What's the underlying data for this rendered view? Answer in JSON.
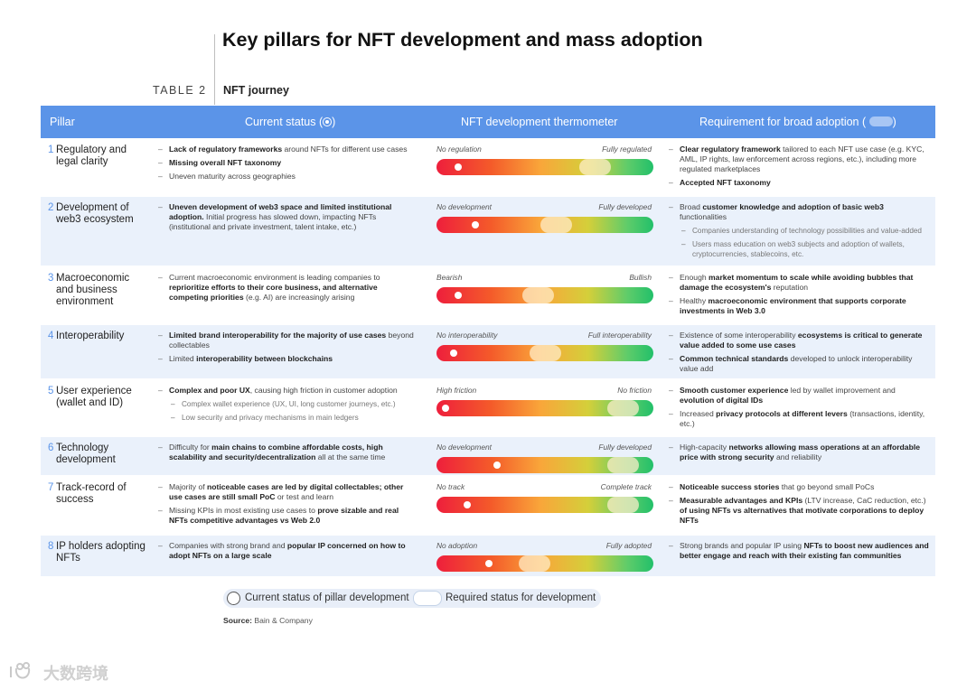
{
  "title": "Key pillars for NFT development and mass adoption",
  "table_tag": "TABLE 2",
  "table_name": "NFT journey",
  "header": {
    "pillar": "Pillar",
    "status": "Current status (",
    "status_close": ")",
    "thermometer": "NFT development thermometer",
    "requirement": "Requirement for broad adoption (",
    "requirement_close": ")"
  },
  "rows": [
    {
      "num": "1",
      "pillar": "Regulatory and legal clarity",
      "status": [
        {
          "b": "Lack of regulatory frameworks",
          "t": " around NFTs for different use cases"
        },
        {
          "b": "Missing overall NFT taxonomy",
          "t": ""
        },
        {
          "b": "",
          "t": "Uneven maturity across geographies"
        }
      ],
      "low": "No regulation",
      "high": "Fully regulated",
      "current": 0.1,
      "required": 0.73,
      "req": [
        {
          "b": "Clear regulatory framework",
          "t": " tailored to each NFT use case (e.g. KYC, AML, IP rights, law enforcement across regions, etc.), including more regulated marketplaces"
        },
        {
          "b": "Accepted NFT taxonomy",
          "t": ""
        }
      ]
    },
    {
      "num": "2",
      "pillar": "Development of web3 ecosystem",
      "status": [
        {
          "b": "Uneven development of web3 space and limited institutional adoption.",
          "t": " Initial progress has slowed down, impacting NFTs (institutional and private investment, talent intake, etc.)"
        }
      ],
      "low": "No development",
      "high": "Fully developed",
      "current": 0.18,
      "required": 0.55,
      "req": [
        {
          "t1": "Broad ",
          "b": "customer knowledge and adoption of basic web3",
          "t": " functionalities"
        },
        {
          "sub": true,
          "t": "Companies understanding of technology possibilities and value-added"
        },
        {
          "sub": true,
          "t": "Users mass education on web3 subjects and adoption of wallets, cryptocurrencies, stablecoins, etc."
        }
      ]
    },
    {
      "num": "3",
      "pillar": "Macroeconomic and business environment",
      "status": [
        {
          "t1": "Current macroeconomic environment is leading companies to ",
          "b": "reprioritize efforts to their core business, and alternative competing priorities",
          "t": " (e.g. AI) are increasingly arising"
        }
      ],
      "low": "Bearish",
      "high": "Bullish",
      "current": 0.1,
      "required": 0.47,
      "req": [
        {
          "t1": "Enough ",
          "b": "market momentum to scale while avoiding bubbles that damage the ecosystem's",
          "t": " reputation"
        },
        {
          "t1": "Healthy ",
          "b": "macroeconomic environment that supports corporate investments in Web 3.0",
          "t": ""
        }
      ]
    },
    {
      "num": "4",
      "pillar": "Interoperability",
      "status": [
        {
          "b": "Limited brand interoperability for the majority of use cases",
          "t": " beyond collectables"
        },
        {
          "t1": "Limited ",
          "b": "interoperability between blockchains",
          "t": ""
        }
      ],
      "low": "No interoperability",
      "high": "Full interoperability",
      "current": 0.08,
      "required": 0.5,
      "req": [
        {
          "t1": "Existence of some interoperability ",
          "b": "ecosystems is critical to generate value added to some use cases",
          "t": ""
        },
        {
          "b": "Common technical standards",
          "t": " developed to unlock interoperability value add"
        }
      ]
    },
    {
      "num": "5",
      "pillar": "User experience (wallet and ID)",
      "status": [
        {
          "b": "Complex and poor UX",
          "t": ", causing high friction in customer adoption"
        },
        {
          "sub": true,
          "t": "Complex wallet experience (UX, UI, long customer journeys, etc.)"
        },
        {
          "sub": true,
          "t": "Low security and privacy mechanisms in main ledgers"
        }
      ],
      "low": "High friction",
      "high": "No friction",
      "current": 0.04,
      "required": 0.86,
      "req": [
        {
          "b": "Smooth customer experience",
          "t": " led by wallet improvement and ",
          "b2": "evolution of digital IDs"
        },
        {
          "t1": "Increased ",
          "b": "privacy protocols at different levers",
          "t": " (transactions, identity, etc.)"
        }
      ]
    },
    {
      "num": "6",
      "pillar": "Technology development",
      "status": [
        {
          "t1": "Difficulty for ",
          "b": "main chains to combine affordable costs, high scalability and security/decentralization",
          "t": " all at the same time"
        }
      ],
      "low": "No development",
      "high": "Fully developed",
      "current": 0.28,
      "required": 0.86,
      "req": [
        {
          "t1": "High-capacity ",
          "b": "networks allowing mass operations at an affordable price with strong security",
          "t": " and reliability"
        }
      ]
    },
    {
      "num": "7",
      "pillar": "Track-record of success",
      "status": [
        {
          "t1": "Majority of ",
          "b": "noticeable cases are led by digital collectables; other use cases are still small PoC",
          "t": " or test and learn"
        },
        {
          "t1": "Missing KPIs in most existing use cases to ",
          "b": "prove sizable and real NFTs competitive advantages vs Web 2.0",
          "t": ""
        }
      ],
      "low": "No track",
      "high": "Complete track",
      "current": 0.14,
      "required": 0.86,
      "req": [
        {
          "b": "Noticeable success stories",
          "t": " that go beyond small PoCs"
        },
        {
          "b": "Measurable advantages and KPIs",
          "t": " (LTV increase, CaC reduction, etc.) ",
          "b2": "of using NFTs vs alternatives that motivate corporations to deploy NFTs"
        }
      ]
    },
    {
      "num": "8",
      "pillar": "IP holders adopting NFTs",
      "status": [
        {
          "t1": "Companies with strong brand and ",
          "b": "popular IP concerned on how to adopt NFTs on a large scale",
          "t": ""
        }
      ],
      "low": "No adoption",
      "high": "Fully adopted",
      "current": 0.24,
      "required": 0.45,
      "req": [
        {
          "t1": "Strong brands and popular IP using ",
          "b": "NFTs to boost new audiences and better engage and reach with their existing fan communities",
          "t": ""
        }
      ]
    }
  ],
  "legend": {
    "current": "Current status of pillar development",
    "required": "Required status for development"
  },
  "source": {
    "label": "Source:",
    "text": " Bain & Company"
  },
  "watermark": "大数跨境"
}
